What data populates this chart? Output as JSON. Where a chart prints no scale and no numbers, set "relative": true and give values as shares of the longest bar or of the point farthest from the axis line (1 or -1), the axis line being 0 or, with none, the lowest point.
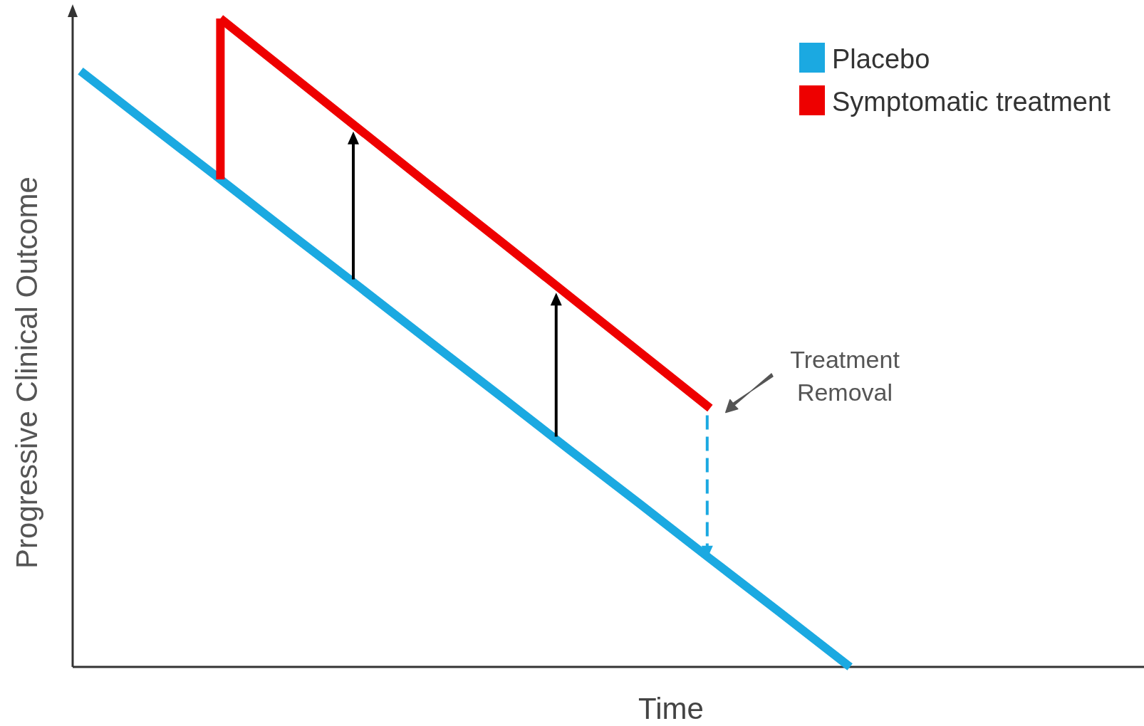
{
  "chart_data": {
    "type": "line",
    "xlabel": "Time",
    "ylabel": "Progressive Clinical Outcome",
    "relative": true,
    "legend": "top right",
    "line_style": "solid",
    "categories": [
      null,
      null,
      null,
      null,
      null,
      null,
      null,
      null,
      null,
      null,
      null,
      null,
      null,
      null,
      null,
      null
    ],
    "series": [
      {
        "name": "Placebo",
        "color": "#1ba9e1",
        "values": [
          0.919,
          0.835,
          0.752,
          0.668,
          0.585,
          0.501,
          0.418,
          0.334,
          0.251,
          0.167,
          0.084,
          0,
          null,
          null,
          null,
          null
        ]
      },
      {
        "name": "Symptomatic treatment",
        "color": "#ee0000",
        "values": [
          null,
          null,
          1,
          0.914,
          0.828,
          0.742,
          0.657,
          0.571,
          0.485,
          0.399,
          null,
          null,
          null,
          null,
          null,
          null
        ]
      }
    ],
    "annotations": [
      "Treatment Removal"
    ]
  }
}
